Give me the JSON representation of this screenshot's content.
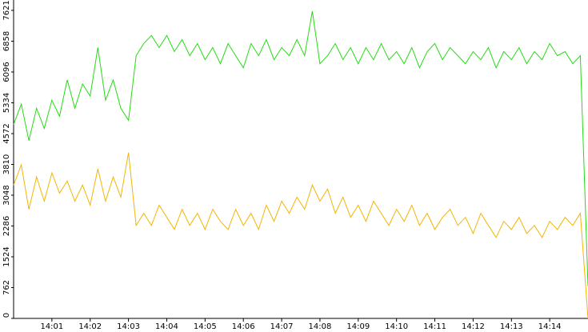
{
  "chart_data": {
    "type": "line",
    "x": [
      840.0,
      840.2,
      840.4,
      840.6,
      840.8,
      841.0,
      841.2,
      841.4,
      841.6,
      841.8,
      842.0,
      842.2,
      842.4,
      842.6,
      842.8,
      843.0,
      843.2,
      843.4,
      843.6,
      843.8,
      844.0,
      844.2,
      844.4,
      844.6,
      844.8,
      845.0,
      845.2,
      845.4,
      845.6,
      845.8,
      846.0,
      846.2,
      846.4,
      846.6,
      846.8,
      847.0,
      847.2,
      847.4,
      847.6,
      847.8,
      848.0,
      848.2,
      848.4,
      848.6,
      848.8,
      849.0,
      849.2,
      849.4,
      849.6,
      849.8,
      850.0,
      850.2,
      850.4,
      850.6,
      850.8,
      851.0,
      851.2,
      851.4,
      851.6,
      851.8,
      852.0,
      852.2,
      852.4,
      852.6,
      852.8,
      853.0,
      853.2,
      853.4,
      853.6,
      853.8,
      854.0,
      854.2,
      854.4,
      854.6,
      854.8,
      855.0
    ],
    "series": [
      {
        "color": "#22dd11",
        "values": [
          4800,
          5300,
          4400,
          5200,
          4700,
          5400,
          5000,
          5900,
          5200,
          5800,
          5500,
          6700,
          5400,
          5900,
          5200,
          4900,
          6500,
          6800,
          7000,
          6700,
          7000,
          6600,
          6900,
          6500,
          6800,
          6400,
          6700,
          6300,
          6800,
          6500,
          6200,
          6800,
          6500,
          6900,
          6400,
          6700,
          6500,
          6900,
          6500,
          7600,
          6300,
          6500,
          6800,
          6400,
          6700,
          6300,
          6700,
          6400,
          6800,
          6400,
          6600,
          6300,
          6700,
          6200,
          6600,
          6800,
          6400,
          6700,
          6500,
          6300,
          6600,
          6400,
          6700,
          6200,
          6600,
          6400,
          6700,
          6300,
          6600,
          6400,
          6800,
          6500,
          6600,
          6300,
          6500,
          800
        ]
      },
      {
        "color": "#f2b600",
        "values": [
          3300,
          3800,
          2700,
          3500,
          2900,
          3600,
          3100,
          3400,
          2900,
          3300,
          2800,
          3700,
          2900,
          3500,
          3000,
          4100,
          2300,
          2600,
          2300,
          2800,
          2500,
          2200,
          2700,
          2300,
          2600,
          2200,
          2700,
          2400,
          2200,
          2700,
          2300,
          2600,
          2200,
          2800,
          2400,
          2900,
          2600,
          3000,
          2700,
          3300,
          2900,
          3200,
          2600,
          3000,
          2500,
          2800,
          2400,
          2900,
          2600,
          2300,
          2700,
          2400,
          2800,
          2300,
          2600,
          2200,
          2500,
          2700,
          2300,
          2500,
          2100,
          2600,
          2300,
          2000,
          2400,
          2200,
          2500,
          2100,
          2300,
          2000,
          2400,
          2200,
          2500,
          2300,
          2600,
          0
        ]
      }
    ],
    "xlim": [
      840,
      855
    ],
    "xticks": [
      {
        "value": 841,
        "label": "14:01"
      },
      {
        "value": 842,
        "label": "14:02"
      },
      {
        "value": 843,
        "label": "14:03"
      },
      {
        "value": 844,
        "label": "14:04"
      },
      {
        "value": 845,
        "label": "14:05"
      },
      {
        "value": 846,
        "label": "14:06"
      },
      {
        "value": 847,
        "label": "14:07"
      },
      {
        "value": 848,
        "label": "14:08"
      },
      {
        "value": 849,
        "label": "14:09"
      },
      {
        "value": 850,
        "label": "14:10"
      },
      {
        "value": 851,
        "label": "14:11"
      },
      {
        "value": 852,
        "label": "14:12"
      },
      {
        "value": 853,
        "label": "14:13"
      },
      {
        "value": 854,
        "label": "14:14"
      }
    ],
    "ylim": [
      0,
      7877
    ],
    "yticks": [
      0,
      762,
      1524,
      2286,
      3048,
      3810,
      4572,
      5334,
      6096,
      6858,
      7621
    ]
  }
}
